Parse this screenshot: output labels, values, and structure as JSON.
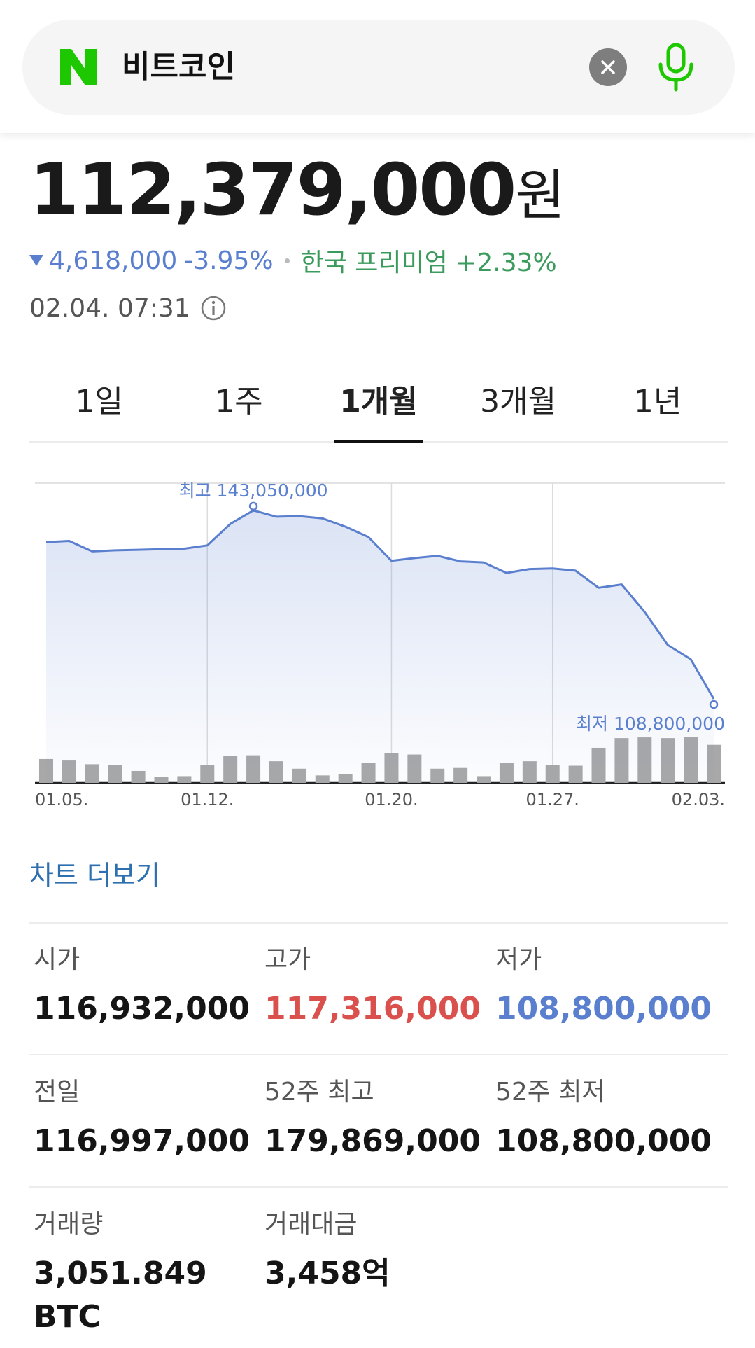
{
  "search": {
    "query": "비트코인",
    "logo_icon": "naver-n-logo-icon",
    "clear_icon": "close-icon",
    "mic_icon": "microphone-icon",
    "brand_color": "#1ec800"
  },
  "price": {
    "current": "112,379,000",
    "unit": "원",
    "change_amount": "4,618,000",
    "change_percent": "-3.95%",
    "direction": "down",
    "premium_label": "한국 프리미엄 +2.33%",
    "timestamp": "02.04. 07:31",
    "down_color": "#5a7fcf",
    "premium_color": "#3a9b5c"
  },
  "tabs": [
    {
      "label": "1일",
      "active": false
    },
    {
      "label": "1주",
      "active": false
    },
    {
      "label": "1개월",
      "active": true
    },
    {
      "label": "3개월",
      "active": false
    },
    {
      "label": "1년",
      "active": false
    }
  ],
  "chart_data": {
    "type": "line",
    "x_tick_labels": [
      "01.05.",
      "01.12.",
      "01.20.",
      "01.27.",
      "02.03."
    ],
    "ylim": [
      106000000,
      148000000
    ],
    "grid": true,
    "line_color": "#5a7fcf",
    "max_annotation": "최고 143,050,000",
    "min_annotation": "최저 108,800,000",
    "max_index": 9,
    "min_index": 29,
    "series": [
      {
        "values": [
          137300000,
          137500000,
          135600000,
          135800000,
          135900000,
          136000000,
          136100000,
          136700000,
          140600000,
          143050000,
          141900000,
          142000000,
          141600000,
          140100000,
          138200000,
          133900000,
          134400000,
          134800000,
          133800000,
          133600000,
          131700000,
          132400000,
          132500000,
          132100000,
          129000000,
          129600000,
          124600000,
          118600000,
          116000000,
          108800000
        ]
      }
    ],
    "volume": [
      3.2,
      3.0,
      2.5,
      2.4,
      1.6,
      0.8,
      0.9,
      2.4,
      3.6,
      3.7,
      2.9,
      1.9,
      1.0,
      1.2,
      2.7,
      4.0,
      3.8,
      1.9,
      2.0,
      0.9,
      2.7,
      2.9,
      2.4,
      2.3,
      4.7,
      6.0,
      6.1,
      6.0,
      6.2,
      5.1
    ],
    "volume_color": "#a8a8a8"
  },
  "more_chart_label": "차트 더보기",
  "stats": {
    "open_label": "시가",
    "open": "116,932,000",
    "high_label": "고가",
    "high": "117,316,000",
    "low_label": "저가",
    "low": "108,800,000",
    "prev_label": "전일",
    "prev": "116,997,000",
    "w52_high_label": "52주 최고",
    "w52_high": "179,869,000",
    "w52_low_label": "52주 최저",
    "w52_low": "108,800,000",
    "volume_label": "거래량",
    "volume": "3,051.849",
    "volume_unit": "BTC",
    "turnover_label": "거래대금",
    "turnover": "3,458억",
    "high_color": "#d9504c",
    "low_color": "#5a7fcf"
  }
}
